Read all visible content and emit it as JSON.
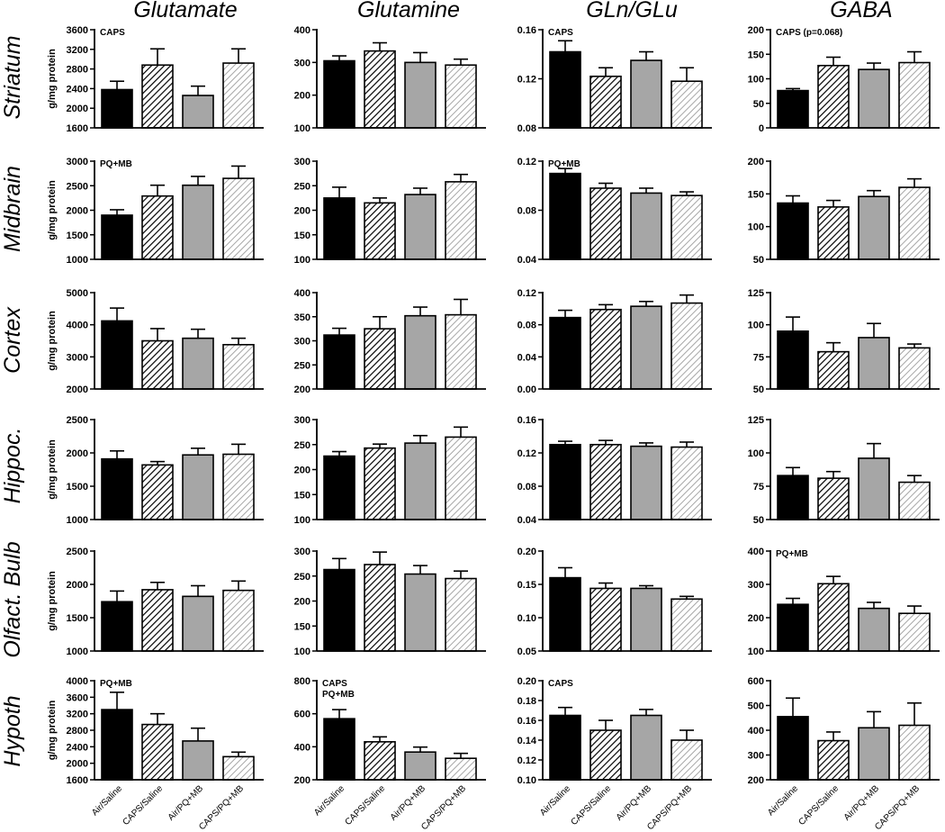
{
  "figure": {
    "column_titles": [
      "Glutamate",
      "Glutamine",
      "GLn/GLu",
      "GABA"
    ],
    "row_titles": [
      "Striatum",
      "Midbrain",
      "Cortex",
      "Hippoc.",
      "Olfact. Bulb",
      "Hypoth"
    ],
    "ylabel": "g/mg protein",
    "categories": [
      "Air/Saline",
      "CAPS/Saline",
      "Air/PQ+MB",
      "CAPS/PQ+MB"
    ],
    "colors": {
      "bar_black": "#000000",
      "bar_gray": "#a6a6a6",
      "hatch_line": "#000000",
      "light_hatch": "#a6a6a6"
    }
  },
  "chart_data": [
    {
      "type": "bar",
      "row": "Striatum",
      "col": "Glutamate",
      "ylabel": "g/mg protein",
      "ylim": [
        1600,
        3600
      ],
      "yticks": [
        "1600",
        "2000",
        "2400",
        "2800",
        "3200",
        "3600"
      ],
      "annotation": "CAPS",
      "categories": [
        "Air/Saline",
        "CAPS/Saline",
        "Air/PQ+MB",
        "CAPS/PQ+MB"
      ],
      "values": [
        2380,
        2880,
        2260,
        2920
      ],
      "errors": [
        170,
        330,
        190,
        290
      ]
    },
    {
      "type": "bar",
      "row": "Striatum",
      "col": "Glutamine",
      "ylim": [
        100,
        400
      ],
      "yticks": [
        "100",
        "200",
        "300",
        "400"
      ],
      "categories": [
        "Air/Saline",
        "CAPS/Saline",
        "Air/PQ+MB",
        "CAPS/PQ+MB"
      ],
      "values": [
        305,
        335,
        300,
        292
      ],
      "errors": [
        15,
        25,
        30,
        18
      ]
    },
    {
      "type": "bar",
      "row": "Striatum",
      "col": "GLn/GLu",
      "ylim": [
        0.08,
        0.16
      ],
      "yticks": [
        "0.08",
        "0.12",
        "0.16"
      ],
      "annotation": "CAPS",
      "categories": [
        "Air/Saline",
        "CAPS/Saline",
        "Air/PQ+MB",
        "CAPS/PQ+MB"
      ],
      "values": [
        0.142,
        0.122,
        0.135,
        0.118
      ],
      "errors": [
        0.009,
        0.007,
        0.007,
        0.011
      ]
    },
    {
      "type": "bar",
      "row": "Striatum",
      "col": "GABA",
      "ylim": [
        0,
        200
      ],
      "yticks": [
        "0",
        "50",
        "100",
        "150",
        "200"
      ],
      "annotation": "CAPS (p=0.068)",
      "categories": [
        "Air/Saline",
        "CAPS/Saline",
        "Air/PQ+MB",
        "CAPS/PQ+MB"
      ],
      "values": [
        76,
        127,
        119,
        133
      ],
      "errors": [
        4,
        17,
        13,
        22
      ]
    },
    {
      "type": "bar",
      "row": "Midbrain",
      "col": "Glutamate",
      "ylabel": "g/mg protein",
      "ylim": [
        1000,
        3000
      ],
      "yticks": [
        "1000",
        "1500",
        "2000",
        "2500",
        "3000"
      ],
      "annotation": "PQ+MB",
      "categories": [
        "Air/Saline",
        "CAPS/Saline",
        "Air/PQ+MB",
        "CAPS/PQ+MB"
      ],
      "values": [
        1900,
        2290,
        2510,
        2650
      ],
      "errors": [
        110,
        220,
        180,
        250
      ]
    },
    {
      "type": "bar",
      "row": "Midbrain",
      "col": "Glutamine",
      "ylim": [
        100,
        300
      ],
      "yticks": [
        "100",
        "150",
        "200",
        "250",
        "300"
      ],
      "categories": [
        "Air/Saline",
        "CAPS/Saline",
        "Air/PQ+MB",
        "CAPS/PQ+MB"
      ],
      "values": [
        225,
        215,
        232,
        258
      ],
      "errors": [
        22,
        10,
        13,
        15
      ]
    },
    {
      "type": "bar",
      "row": "Midbrain",
      "col": "GLn/GLu",
      "ylim": [
        0.04,
        0.12
      ],
      "yticks": [
        "0.04",
        "0.08",
        "0.12"
      ],
      "annotation": "PQ+MB",
      "categories": [
        "Air/Saline",
        "CAPS/Saline",
        "Air/PQ+MB",
        "CAPS/PQ+MB"
      ],
      "values": [
        0.11,
        0.098,
        0.094,
        0.092
      ],
      "errors": [
        0.004,
        0.004,
        0.004,
        0.003
      ]
    },
    {
      "type": "bar",
      "row": "Midbrain",
      "col": "GABA",
      "ylim": [
        50,
        200
      ],
      "yticks": [
        "50",
        "100",
        "150",
        "200"
      ],
      "categories": [
        "Air/Saline",
        "CAPS/Saline",
        "Air/PQ+MB",
        "CAPS/PQ+MB"
      ],
      "values": [
        136,
        130,
        146,
        160
      ],
      "errors": [
        11,
        10,
        9,
        13
      ]
    },
    {
      "type": "bar",
      "row": "Cortex",
      "col": "Glutamate",
      "ylabel": "g/mg protein",
      "ylim": [
        2000,
        5000
      ],
      "yticks": [
        "2000",
        "3000",
        "4000",
        "5000"
      ],
      "categories": [
        "Air/Saline",
        "CAPS/Saline",
        "Air/PQ+MB",
        "CAPS/PQ+MB"
      ],
      "values": [
        4120,
        3500,
        3580,
        3380
      ],
      "errors": [
        400,
        380,
        280,
        200
      ]
    },
    {
      "type": "bar",
      "row": "Cortex",
      "col": "Glutamine",
      "ylim": [
        200,
        400
      ],
      "yticks": [
        "200",
        "250",
        "300",
        "350",
        "400"
      ],
      "categories": [
        "Air/Saline",
        "CAPS/Saline",
        "Air/PQ+MB",
        "CAPS/PQ+MB"
      ],
      "values": [
        312,
        325,
        352,
        354
      ],
      "errors": [
        14,
        25,
        18,
        32
      ]
    },
    {
      "type": "bar",
      "row": "Cortex",
      "col": "GLn/GLu",
      "ylim": [
        0,
        0.12
      ],
      "yticks": [
        "0.00",
        "0.04",
        "0.08",
        "0.12"
      ],
      "categories": [
        "Air/Saline",
        "CAPS/Saline",
        "Air/PQ+MB",
        "CAPS/PQ+MB"
      ],
      "values": [
        0.089,
        0.099,
        0.103,
        0.107
      ],
      "errors": [
        0.009,
        0.006,
        0.006,
        0.01
      ]
    },
    {
      "type": "bar",
      "row": "Cortex",
      "col": "GABA",
      "ylim": [
        50,
        125
      ],
      "yticks": [
        "50",
        "75",
        "100",
        "125"
      ],
      "categories": [
        "Air/Saline",
        "CAPS/Saline",
        "Air/PQ+MB",
        "CAPS/PQ+MB"
      ],
      "values": [
        95,
        79,
        90,
        82
      ],
      "errors": [
        11,
        7,
        11,
        3
      ]
    },
    {
      "type": "bar",
      "row": "Hippoc.",
      "col": "Glutamate",
      "ylabel": "g/mg protein",
      "ylim": [
        1000,
        2500
      ],
      "yticks": [
        "1000",
        "1500",
        "2000",
        "2500"
      ],
      "categories": [
        "Air/Saline",
        "CAPS/Saline",
        "Air/PQ+MB",
        "CAPS/PQ+MB"
      ],
      "values": [
        1910,
        1820,
        1970,
        1980
      ],
      "errors": [
        120,
        50,
        100,
        150
      ]
    },
    {
      "type": "bar",
      "row": "Hippoc.",
      "col": "Glutamine",
      "ylim": [
        100,
        300
      ],
      "yticks": [
        "100",
        "150",
        "200",
        "250",
        "300"
      ],
      "categories": [
        "Air/Saline",
        "CAPS/Saline",
        "Air/PQ+MB",
        "CAPS/PQ+MB"
      ],
      "values": [
        227,
        243,
        253,
        265
      ],
      "errors": [
        9,
        8,
        15,
        20
      ]
    },
    {
      "type": "bar",
      "row": "Hippoc.",
      "col": "GLn/GLu",
      "ylim": [
        0.04,
        0.16
      ],
      "yticks": [
        "0.04",
        "0.08",
        "0.12",
        "0.16"
      ],
      "categories": [
        "Air/Saline",
        "CAPS/Saline",
        "Air/PQ+MB",
        "CAPS/PQ+MB"
      ],
      "values": [
        0.13,
        0.13,
        0.128,
        0.127
      ],
      "errors": [
        0.004,
        0.005,
        0.004,
        0.006
      ]
    },
    {
      "type": "bar",
      "row": "Hippoc.",
      "col": "GABA",
      "ylim": [
        50,
        125
      ],
      "yticks": [
        "50",
        "75",
        "100",
        "125"
      ],
      "categories": [
        "Air/Saline",
        "CAPS/Saline",
        "Air/PQ+MB",
        "CAPS/PQ+MB"
      ],
      "values": [
        83,
        81,
        96,
        78
      ],
      "errors": [
        6,
        5,
        11,
        5
      ]
    },
    {
      "type": "bar",
      "row": "Olfact. Bulb",
      "col": "Glutamate",
      "ylabel": "g/mg protein",
      "ylim": [
        1000,
        2500
      ],
      "yticks": [
        "1000",
        "1500",
        "2000",
        "2500"
      ],
      "categories": [
        "Air/Saline",
        "CAPS/Saline",
        "Air/PQ+MB",
        "CAPS/PQ+MB"
      ],
      "values": [
        1740,
        1920,
        1820,
        1910
      ],
      "errors": [
        160,
        110,
        160,
        140
      ]
    },
    {
      "type": "bar",
      "row": "Olfact. Bulb",
      "col": "Glutamine",
      "ylim": [
        100,
        300
      ],
      "yticks": [
        "100",
        "150",
        "200",
        "250",
        "300"
      ],
      "categories": [
        "Air/Saline",
        "CAPS/Saline",
        "Air/PQ+MB",
        "CAPS/PQ+MB"
      ],
      "values": [
        263,
        273,
        254,
        245
      ],
      "errors": [
        22,
        25,
        17,
        15
      ]
    },
    {
      "type": "bar",
      "row": "Olfact. Bulb",
      "col": "GLn/GLu",
      "ylim": [
        0.05,
        0.2
      ],
      "yticks": [
        "0.05",
        "0.10",
        "0.15",
        "0.20"
      ],
      "categories": [
        "Air/Saline",
        "CAPS/Saline",
        "Air/PQ+MB",
        "CAPS/PQ+MB"
      ],
      "values": [
        0.16,
        0.144,
        0.144,
        0.128
      ],
      "errors": [
        0.015,
        0.008,
        0.004,
        0.004
      ]
    },
    {
      "type": "bar",
      "row": "Olfact. Bulb",
      "col": "GABA",
      "ylim": [
        100,
        400
      ],
      "yticks": [
        "100",
        "200",
        "300",
        "400"
      ],
      "annotation": "PQ+MB",
      "categories": [
        "Air/Saline",
        "CAPS/Saline",
        "Air/PQ+MB",
        "CAPS/PQ+MB"
      ],
      "values": [
        240,
        302,
        228,
        213
      ],
      "errors": [
        18,
        22,
        18,
        22
      ]
    },
    {
      "type": "bar",
      "row": "Hypoth",
      "col": "Glutamate",
      "ylabel": "g/mg protein",
      "ylim": [
        1600,
        4000
      ],
      "yticks": [
        "1600",
        "2000",
        "2400",
        "2800",
        "3200",
        "3600",
        "4000"
      ],
      "annotation": "PQ+MB",
      "categories": [
        "Air/Saline",
        "CAPS/Saline",
        "Air/PQ+MB",
        "CAPS/PQ+MB"
      ],
      "values": [
        3300,
        2940,
        2540,
        2160
      ],
      "errors": [
        420,
        260,
        310,
        110
      ]
    },
    {
      "type": "bar",
      "row": "Hypoth",
      "col": "Glutamine",
      "ylim": [
        200,
        800
      ],
      "yticks": [
        "200",
        "400",
        "600",
        "800"
      ],
      "annotation": "CAPS\nPQ+MB",
      "categories": [
        "Air/Saline",
        "CAPS/Saline",
        "Air/PQ+MB",
        "CAPS/PQ+MB"
      ],
      "values": [
        570,
        430,
        368,
        330
      ],
      "errors": [
        55,
        30,
        30,
        30
      ]
    },
    {
      "type": "bar",
      "row": "Hypoth",
      "col": "GLn/GLu",
      "ylim": [
        0.1,
        0.2
      ],
      "yticks": [
        "0.10",
        "0.12",
        "0.14",
        "0.16",
        "0.18",
        "0.20"
      ],
      "annotation": "CAPS",
      "categories": [
        "Air/Saline",
        "CAPS/Saline",
        "Air/PQ+MB",
        "CAPS/PQ+MB"
      ],
      "values": [
        0.165,
        0.15,
        0.165,
        0.14
      ],
      "errors": [
        0.008,
        0.01,
        0.006,
        0.01
      ]
    },
    {
      "type": "bar",
      "row": "Hypoth",
      "col": "GABA",
      "ylim": [
        200,
        600
      ],
      "yticks": [
        "200",
        "300",
        "400",
        "500",
        "600"
      ],
      "categories": [
        "Air/Saline",
        "CAPS/Saline",
        "Air/PQ+MB",
        "CAPS/PQ+MB"
      ],
      "values": [
        455,
        358,
        410,
        420
      ],
      "errors": [
        75,
        35,
        65,
        90
      ]
    }
  ]
}
